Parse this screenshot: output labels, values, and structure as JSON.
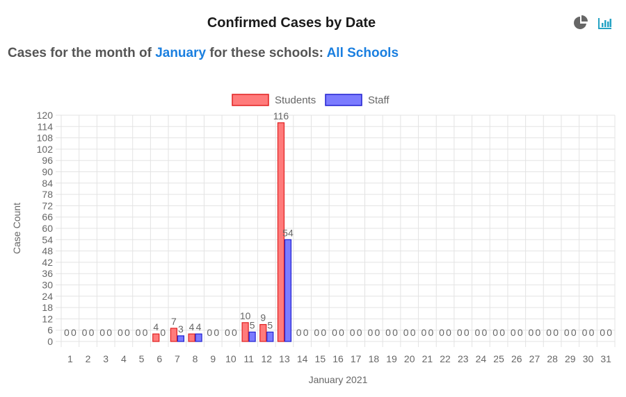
{
  "header": {
    "title": "Confirmed Cases by Date",
    "icons": [
      "pie-chart-icon",
      "bar-chart-icon"
    ]
  },
  "subtitle": {
    "prefix": "Cases for the month of ",
    "month": "January",
    "middle": " for these schools: ",
    "schools": "All Schools"
  },
  "colors": {
    "students_fill": "#ff7b7b",
    "students_stroke": "#e02020",
    "staff_fill": "#7b7bff",
    "staff_stroke": "#2020d0",
    "link": "#1a7fe0"
  },
  "chart_data": {
    "type": "bar",
    "xlabel": "January 2021",
    "ylabel": "Case Count",
    "ylim": [
      0,
      120
    ],
    "yticks": [
      0,
      6,
      12,
      18,
      24,
      30,
      36,
      42,
      48,
      54,
      60,
      66,
      72,
      78,
      84,
      90,
      96,
      102,
      108,
      114,
      120
    ],
    "grid": true,
    "legend_position": "top",
    "categories": [
      "1",
      "2",
      "3",
      "4",
      "5",
      "6",
      "7",
      "8",
      "9",
      "10",
      "11",
      "12",
      "13",
      "14",
      "15",
      "16",
      "17",
      "18",
      "19",
      "20",
      "21",
      "22",
      "23",
      "24",
      "25",
      "26",
      "27",
      "28",
      "29",
      "30",
      "31"
    ],
    "series": [
      {
        "name": "Students",
        "values": [
          0,
          0,
          0,
          0,
          0,
          4,
          7,
          4,
          0,
          0,
          10,
          9,
          116,
          0,
          0,
          0,
          0,
          0,
          0,
          0,
          0,
          0,
          0,
          0,
          0,
          0,
          0,
          0,
          0,
          0,
          0
        ]
      },
      {
        "name": "Staff",
        "values": [
          0,
          0,
          0,
          0,
          0,
          0,
          3,
          4,
          0,
          0,
          5,
          5,
          54,
          0,
          0,
          0,
          0,
          0,
          0,
          0,
          0,
          0,
          0,
          0,
          0,
          0,
          0,
          0,
          0,
          0,
          0
        ]
      }
    ]
  }
}
